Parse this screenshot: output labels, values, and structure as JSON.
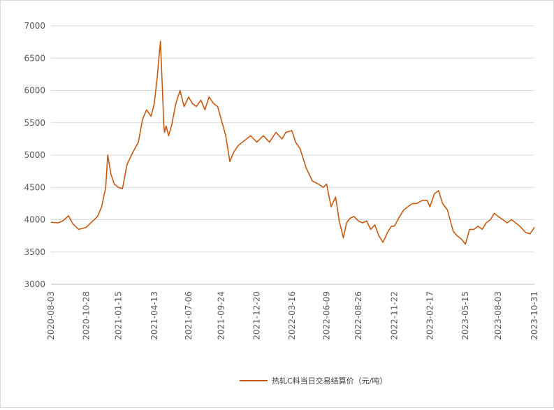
{
  "chart_data": {
    "type": "line",
    "title": "",
    "xlabel": "",
    "ylabel": "",
    "ylim": [
      3000,
      7000
    ],
    "yticks": [
      3000,
      3500,
      4000,
      4500,
      5000,
      5500,
      6000,
      6500,
      7000
    ],
    "xticks": [
      "2020-08-03",
      "2020-10-28",
      "2021-01-15",
      "2021-04-13",
      "2021-07-06",
      "2021-09-24",
      "2021-12-20",
      "2022-03-16",
      "2022-06-09",
      "2022-08-26",
      "2022-11-22",
      "2023-02-17",
      "2023-05-15",
      "2023-08-03",
      "2023-10-31"
    ],
    "grid": "horizontal",
    "legend_position": "bottom",
    "line_color": "#C55A11",
    "series": [
      {
        "name": "热轧C料当日交易结算价（元/吨）",
        "x": [
          "2020-08-03",
          "2020-08-20",
          "2020-09-01",
          "2020-09-15",
          "2020-09-25",
          "2020-10-10",
          "2020-10-28",
          "2020-11-10",
          "2020-11-25",
          "2020-12-05",
          "2020-12-15",
          "2020-12-20",
          "2020-12-28",
          "2021-01-05",
          "2021-01-15",
          "2021-01-25",
          "2021-02-05",
          "2021-02-20",
          "2021-03-05",
          "2021-03-15",
          "2021-03-25",
          "2021-04-05",
          "2021-04-13",
          "2021-04-20",
          "2021-04-28",
          "2021-05-03",
          "2021-05-06",
          "2021-05-08",
          "2021-05-12",
          "2021-05-18",
          "2021-05-25",
          "2021-06-05",
          "2021-06-15",
          "2021-06-25",
          "2021-07-06",
          "2021-07-15",
          "2021-07-25",
          "2021-08-05",
          "2021-08-15",
          "2021-08-25",
          "2021-09-05",
          "2021-09-15",
          "2021-09-24",
          "2021-10-05",
          "2021-10-15",
          "2021-10-25",
          "2021-11-05",
          "2021-11-15",
          "2021-11-25",
          "2021-12-05",
          "2021-12-20",
          "2022-01-05",
          "2022-01-20",
          "2022-02-05",
          "2022-02-20",
          "2022-03-01",
          "2022-03-16",
          "2022-03-25",
          "2022-04-05",
          "2022-04-20",
          "2022-05-05",
          "2022-05-20",
          "2022-06-01",
          "2022-06-09",
          "2022-06-20",
          "2022-07-01",
          "2022-07-10",
          "2022-07-20",
          "2022-07-28",
          "2022-08-05",
          "2022-08-15",
          "2022-08-26",
          "2022-09-05",
          "2022-09-15",
          "2022-09-25",
          "2022-10-05",
          "2022-10-15",
          "2022-10-25",
          "2022-11-05",
          "2022-11-15",
          "2022-11-22",
          "2022-12-05",
          "2022-12-15",
          "2022-12-25",
          "2023-01-05",
          "2023-01-15",
          "2023-01-30",
          "2023-02-10",
          "2023-02-17",
          "2023-02-28",
          "2023-03-10",
          "2023-03-20",
          "2023-04-01",
          "2023-04-15",
          "2023-04-25",
          "2023-05-05",
          "2023-05-15",
          "2023-05-25",
          "2023-06-05",
          "2023-06-15",
          "2023-06-25",
          "2023-07-05",
          "2023-07-15",
          "2023-07-25",
          "2023-08-03",
          "2023-08-15",
          "2023-08-25",
          "2023-09-05",
          "2023-09-15",
          "2023-09-25",
          "2023-10-10",
          "2023-10-20",
          "2023-10-31"
        ],
        "values": [
          3960,
          3950,
          3980,
          4060,
          3940,
          3850,
          3880,
          3960,
          4050,
          4200,
          4500,
          5000,
          4700,
          4550,
          4500,
          4480,
          4850,
          5050,
          5200,
          5550,
          5700,
          5600,
          5800,
          6200,
          6760,
          6000,
          5500,
          5350,
          5450,
          5300,
          5450,
          5800,
          6000,
          5750,
          5900,
          5800,
          5750,
          5850,
          5700,
          5900,
          5800,
          5750,
          5550,
          5300,
          4900,
          5050,
          5150,
          5200,
          5250,
          5300,
          5200,
          5300,
          5200,
          5350,
          5250,
          5350,
          5380,
          5200,
          5100,
          4800,
          4600,
          4550,
          4500,
          4550,
          4200,
          4350,
          3980,
          3720,
          3950,
          4020,
          4050,
          3980,
          3950,
          3980,
          3850,
          3920,
          3750,
          3650,
          3800,
          3900,
          3900,
          4050,
          4150,
          4200,
          4250,
          4250,
          4300,
          4300,
          4200,
          4400,
          4450,
          4250,
          4150,
          3820,
          3750,
          3700,
          3620,
          3850,
          3850,
          3900,
          3850,
          3950,
          4000,
          4100,
          4050,
          4000,
          3950,
          4000,
          3950,
          3900,
          3800,
          3780,
          3880
        ]
      }
    ]
  }
}
